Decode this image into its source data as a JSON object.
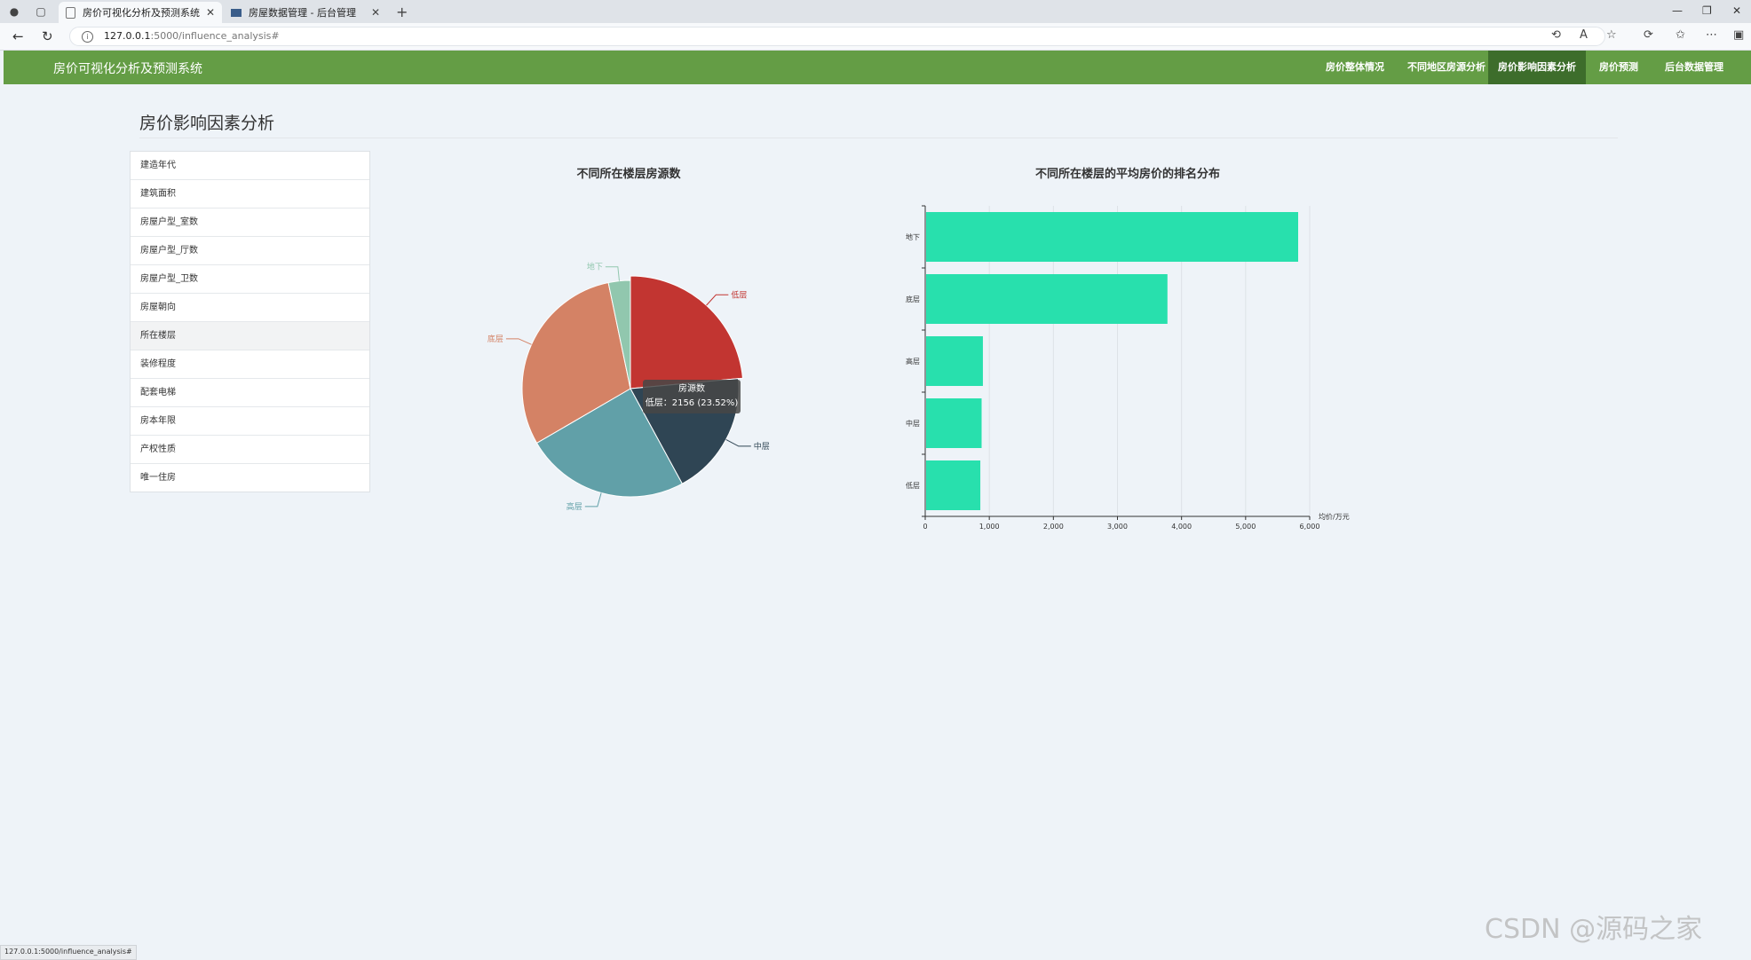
{
  "browser": {
    "tabs": [
      {
        "title": "房价可视化分析及预测系统",
        "active": true
      },
      {
        "title": "房屋数据管理 - 后台管理",
        "active": false
      }
    ],
    "url_host": "127.0.0.1",
    "url_rest": ":5000/influence_analysis#",
    "status_url": "127.0.0.1:5000/influence_analysis#"
  },
  "app": {
    "brand": "房价可视化分析及预测系统",
    "nav": [
      {
        "label": "房价整体情况",
        "active": false
      },
      {
        "label": "不同地区房源分析",
        "active": false
      },
      {
        "label": "房价影响因素分析",
        "active": true
      },
      {
        "label": "房价预测",
        "active": false
      },
      {
        "label": "后台数据管理",
        "active": false
      }
    ],
    "accent_color": "#649d45",
    "active_nav_color": "#3d6d2b"
  },
  "page": {
    "title": "房价影响因素分析",
    "menu": [
      {
        "label": "建造年代",
        "active": false
      },
      {
        "label": "建筑面积",
        "active": false
      },
      {
        "label": "房屋户型_室数",
        "active": false
      },
      {
        "label": "房屋户型_厅数",
        "active": false
      },
      {
        "label": "房屋户型_卫数",
        "active": false
      },
      {
        "label": "房屋朝向",
        "active": false
      },
      {
        "label": "所在楼层",
        "active": true
      },
      {
        "label": "装修程度",
        "active": false
      },
      {
        "label": "配套电梯",
        "active": false
      },
      {
        "label": "房本年限",
        "active": false
      },
      {
        "label": "产权性质",
        "active": false
      },
      {
        "label": "唯一住房",
        "active": false
      }
    ]
  },
  "tooltip": {
    "series": "房源数",
    "text": "低层：2156 (23.52%)"
  },
  "chart_data": [
    {
      "type": "pie",
      "title": "不同所在楼层房源数",
      "series_name": "房源数",
      "slices": [
        {
          "name": "低层",
          "value": 2156,
          "color": "#c23531"
        },
        {
          "name": "中层",
          "value": 1700,
          "color": "#2f4554"
        },
        {
          "name": "高层",
          "value": 2250,
          "color": "#61a0a8"
        },
        {
          "name": "底层",
          "value": 2760,
          "color": "#d48265"
        },
        {
          "name": "地下",
          "value": 300,
          "color": "#91c7ae"
        }
      ]
    },
    {
      "type": "bar",
      "orientation": "horizontal",
      "title": "不同所在楼层的平均房价的排名分布",
      "categories": [
        "地下",
        "底层",
        "高层",
        "中层",
        "低层"
      ],
      "values": [
        5820,
        3780,
        900,
        880,
        860
      ],
      "color": "#28e0ad",
      "xlabel": "均价/万元",
      "xlim": [
        0,
        6000
      ],
      "xticks": [
        "0",
        "1,000",
        "2,000",
        "3,000",
        "4,000",
        "5,000",
        "6,000"
      ],
      "grid": true
    }
  ],
  "watermark": "CSDN @源码之家"
}
